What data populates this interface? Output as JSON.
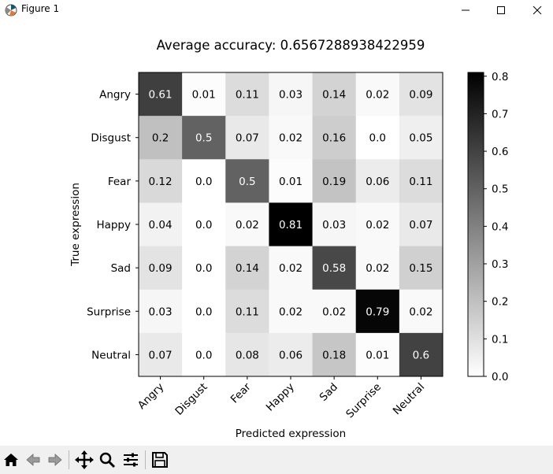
{
  "window": {
    "title": "Figure 1",
    "icon": "matplotlib-icon",
    "controls": [
      "minimize-icon",
      "maximize-icon",
      "close-icon"
    ]
  },
  "toolbar": {
    "buttons": [
      "home-icon",
      "back-arrow-icon",
      "forward-arrow-icon",
      "pan-icon",
      "zoom-icon",
      "configure-subplots-icon",
      "save-icon"
    ]
  },
  "chart_data": {
    "type": "heatmap",
    "title": "Average accuracy: 0.6567288938422959",
    "xlabel": "Predicted expression",
    "ylabel": "True expression",
    "x_categories": [
      "Angry",
      "Disgust",
      "Fear",
      "Happy",
      "Sad",
      "Surprise",
      "Neutral"
    ],
    "y_categories": [
      "Angry",
      "Disgust",
      "Fear",
      "Happy",
      "Sad",
      "Surprise",
      "Neutral"
    ],
    "values": [
      [
        "0.61",
        "0.01",
        "0.11",
        "0.03",
        "0.14",
        "0.02",
        "0.09"
      ],
      [
        "0.2",
        "0.5",
        "0.07",
        "0.02",
        "0.16",
        "0.0",
        "0.05"
      ],
      [
        "0.12",
        "0.0",
        "0.5",
        "0.01",
        "0.19",
        "0.06",
        "0.11"
      ],
      [
        "0.04",
        "0.0",
        "0.02",
        "0.81",
        "0.03",
        "0.02",
        "0.07"
      ],
      [
        "0.09",
        "0.0",
        "0.14",
        "0.02",
        "0.58",
        "0.02",
        "0.15"
      ],
      [
        "0.03",
        "0.0",
        "0.11",
        "0.02",
        "0.02",
        "0.79",
        "0.02"
      ],
      [
        "0.07",
        "0.0",
        "0.08",
        "0.06",
        "0.18",
        "0.01",
        "0.6"
      ]
    ],
    "colormap": "Greys",
    "color_range": [
      0,
      0.81
    ],
    "colorbar_ticks": [
      "0.0",
      "0.1",
      "0.2",
      "0.3",
      "0.4",
      "0.5",
      "0.6",
      "0.7",
      "0.8"
    ],
    "grid": false,
    "legend": "colorbar-right"
  }
}
